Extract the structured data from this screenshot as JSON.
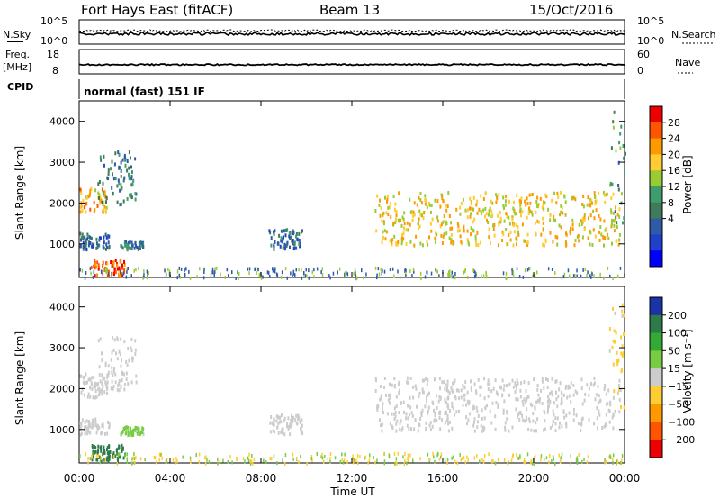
{
  "header": {
    "station": "Fort Hays East (fitACF)",
    "beam": "Beam 13",
    "date": "15/Oct/2016"
  },
  "noise_panel": {
    "left_label": "N.Sky",
    "left_ticks": [
      "10^5",
      "10^0"
    ],
    "right_ticks": [
      "10^5",
      "10^0"
    ],
    "right_label": "N.Search"
  },
  "freq_panel": {
    "left_label_line1": "Freq.",
    "left_label_line2": "[MHz]",
    "left_ticks": [
      "18",
      "8"
    ],
    "right_ticks": [
      "60",
      "0"
    ],
    "right_label": "Nave"
  },
  "cpid_panel": {
    "left_label": "CPID",
    "mode_text": "normal (fast) 151 IF"
  },
  "power_colorbar": {
    "label": "Power [dB]",
    "ticks": [
      "28",
      "24",
      "20",
      "16",
      "12",
      "8",
      "4"
    ],
    "colors": [
      "#ee0000",
      "#ff5500",
      "#ff9900",
      "#ffcc33",
      "#99cc33",
      "#3f9d6c",
      "#3f7a5a",
      "#2e5aa8",
      "#1f3fcc",
      "#0000ff"
    ]
  },
  "velocity_colorbar": {
    "label": "Velocity [m s⁻¹]",
    "ticks": [
      "200",
      "100",
      "50",
      "15",
      "−15",
      "−50",
      "−100",
      "−200"
    ],
    "colors": [
      "#1a33a6",
      "#2e7a4a",
      "#33aa33",
      "#77cc44",
      "#cccccc",
      "#ffcc33",
      "#ff9900",
      "#ff5500",
      "#ee0000"
    ]
  },
  "time_axis": {
    "label": "Time UT",
    "ticks": [
      "00:00",
      "04:00",
      "08:00",
      "12:00",
      "16:00",
      "20:00",
      "00:00"
    ]
  },
  "chart_data": [
    {
      "type": "heatmap",
      "title": "Power",
      "ylabel": "Slant Range [km]",
      "xlabel": "",
      "y_ticks": [
        1000,
        2000,
        3000,
        4000
      ],
      "xlim_hours": [
        0,
        24
      ],
      "ylim_km": [
        180,
        4500
      ],
      "quantity": "Power [dB]",
      "color_scale": [
        0,
        30
      ],
      "features": [
        {
          "name": "early high band",
          "t_start": 0.0,
          "t_end": 1.2,
          "range_km": [
            1800,
            2400
          ],
          "power_db": 22
        },
        {
          "name": "rising arc",
          "t_start": 0.8,
          "t_end": 2.5,
          "range_km": [
            2000,
            3300
          ],
          "power_db": 10
        },
        {
          "name": "early low patch",
          "t_start": 0.0,
          "t_end": 1.3,
          "range_km": [
            900,
            1300
          ],
          "power_db": 8
        },
        {
          "name": "small patch",
          "t_start": 1.8,
          "t_end": 2.8,
          "range_km": [
            900,
            1100
          ],
          "power_db": 9
        },
        {
          "name": "descending near-range",
          "t_start": 0.5,
          "t_end": 2.0,
          "range_km": [
            250,
            650
          ],
          "power_db": 26
        },
        {
          "name": "mid patch",
          "t_start": 8.3,
          "t_end": 9.8,
          "range_km": [
            900,
            1400
          ],
          "power_db": 8
        },
        {
          "name": "main band",
          "t_start": 13.0,
          "t_end": 23.8,
          "range_km": [
            1000,
            2300
          ],
          "power_db": 20
        },
        {
          "name": "late rise",
          "t_start": 23.3,
          "t_end": 24.0,
          "range_km": [
            1500,
            4300
          ],
          "power_db": 12
        }
      ]
    },
    {
      "type": "heatmap",
      "title": "Velocity",
      "ylabel": "Slant Range [km]",
      "xlabel": "Time UT",
      "y_ticks": [
        1000,
        2000,
        3000,
        4000
      ],
      "xlim_hours": [
        0,
        24
      ],
      "ylim_km": [
        180,
        4500
      ],
      "quantity": "Velocity [m s⁻¹]",
      "color_scale": [
        -200,
        200
      ],
      "features": [
        {
          "name": "early high band",
          "t_start": 0.0,
          "t_end": 1.2,
          "range_km": [
            1800,
            2400
          ],
          "velocity": 0
        },
        {
          "name": "rising arc",
          "t_start": 0.8,
          "t_end": 2.5,
          "range_km": [
            2000,
            3300
          ],
          "velocity": 0
        },
        {
          "name": "early low patch",
          "t_start": 0.0,
          "t_end": 1.3,
          "range_km": [
            900,
            1300
          ],
          "velocity": 0
        },
        {
          "name": "small patch",
          "t_start": 1.8,
          "t_end": 2.8,
          "range_km": [
            900,
            1100
          ],
          "velocity": 40
        },
        {
          "name": "descending near-range",
          "t_start": 0.5,
          "t_end": 2.0,
          "range_km": [
            250,
            650
          ],
          "velocity": 150
        },
        {
          "name": "mid patch",
          "t_start": 8.3,
          "t_end": 9.8,
          "range_km": [
            900,
            1400
          ],
          "velocity": 0
        },
        {
          "name": "main band",
          "t_start": 13.0,
          "t_end": 23.8,
          "range_km": [
            1000,
            2300
          ],
          "velocity": 0
        },
        {
          "name": "late rise",
          "t_start": 23.3,
          "t_end": 24.0,
          "range_km": [
            1500,
            4300
          ],
          "velocity": -40
        }
      ]
    }
  ]
}
